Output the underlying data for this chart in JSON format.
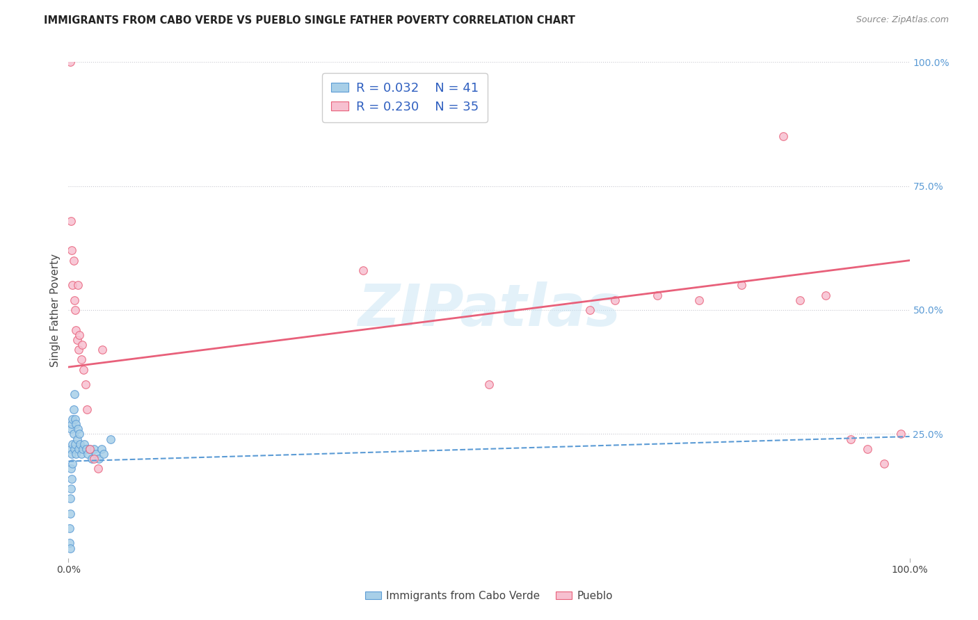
{
  "title": "IMMIGRANTS FROM CABO VERDE VS PUEBLO SINGLE FATHER POVERTY CORRELATION CHART",
  "source": "Source: ZipAtlas.com",
  "ylabel": "Single Father Poverty",
  "ytick_labels_right": [
    "25.0%",
    "50.0%",
    "75.0%",
    "100.0%"
  ],
  "ytick_values_right": [
    0.25,
    0.5,
    0.75,
    1.0
  ],
  "xlim": [
    0,
    1.0
  ],
  "ylim": [
    0,
    1.0
  ],
  "blue_scatter_color": "#a8cfe8",
  "blue_edge_color": "#5b9bd5",
  "pink_scatter_color": "#f7c0d0",
  "pink_edge_color": "#e8607a",
  "line_blue_color": "#5b9bd5",
  "line_pink_color": "#e8607a",
  "watermark_text": "ZIPatlas",
  "blue_x": [
    0.001,
    0.001,
    0.002,
    0.002,
    0.002,
    0.003,
    0.003,
    0.003,
    0.003,
    0.004,
    0.004,
    0.004,
    0.005,
    0.005,
    0.005,
    0.006,
    0.006,
    0.007,
    0.007,
    0.008,
    0.008,
    0.009,
    0.009,
    0.01,
    0.011,
    0.012,
    0.013,
    0.014,
    0.015,
    0.017,
    0.019,
    0.021,
    0.023,
    0.025,
    0.028,
    0.03,
    0.033,
    0.036,
    0.039,
    0.042,
    0.05
  ],
  "blue_y": [
    0.03,
    0.06,
    0.09,
    0.12,
    0.02,
    0.14,
    0.18,
    0.22,
    0.26,
    0.27,
    0.21,
    0.16,
    0.28,
    0.23,
    0.19,
    0.3,
    0.25,
    0.33,
    0.22,
    0.28,
    0.23,
    0.27,
    0.21,
    0.24,
    0.26,
    0.22,
    0.25,
    0.23,
    0.21,
    0.22,
    0.23,
    0.22,
    0.21,
    0.22,
    0.2,
    0.22,
    0.21,
    0.2,
    0.22,
    0.21,
    0.24
  ],
  "pink_x": [
    0.002,
    0.003,
    0.004,
    0.005,
    0.006,
    0.007,
    0.008,
    0.009,
    0.01,
    0.011,
    0.012,
    0.013,
    0.015,
    0.016,
    0.018,
    0.02,
    0.022,
    0.025,
    0.03,
    0.035,
    0.04,
    0.35,
    0.5,
    0.62,
    0.65,
    0.7,
    0.75,
    0.8,
    0.85,
    0.87,
    0.9,
    0.93,
    0.95,
    0.97,
    0.99
  ],
  "pink_y": [
    1.0,
    0.68,
    0.62,
    0.55,
    0.6,
    0.52,
    0.5,
    0.46,
    0.44,
    0.55,
    0.42,
    0.45,
    0.4,
    0.43,
    0.38,
    0.35,
    0.3,
    0.22,
    0.2,
    0.18,
    0.42,
    0.58,
    0.35,
    0.5,
    0.52,
    0.53,
    0.52,
    0.55,
    0.85,
    0.52,
    0.53,
    0.24,
    0.22,
    0.19,
    0.25
  ],
  "blue_line_x0": 0.0,
  "blue_line_x1": 1.0,
  "blue_line_y0": 0.195,
  "blue_line_y1": 0.245,
  "pink_line_x0": 0.0,
  "pink_line_x1": 1.0,
  "pink_line_y0": 0.385,
  "pink_line_y1": 0.6
}
